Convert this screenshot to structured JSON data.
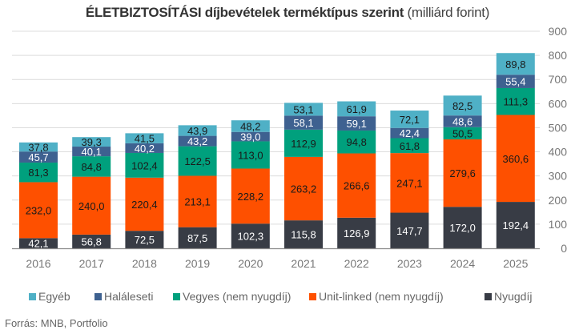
{
  "chart_data": {
    "type": "bar",
    "stacked": true,
    "title_bold": "ÉLETBIZTOSÍTÁSI díjbevételek terméktípus szerint",
    "title_light": "(milliárd forint)",
    "categories": [
      "2016",
      "2017",
      "2018",
      "2019",
      "2020",
      "2021",
      "2022",
      "2023",
      "2024",
      "2025"
    ],
    "series": [
      {
        "name": "Nyugdíj",
        "color": "#383c45",
        "label_color": "#ffffff",
        "values": [
          42.1,
          56.8,
          72.5,
          87.5,
          102.3,
          115.8,
          126.9,
          147.7,
          172.0,
          192.4
        ]
      },
      {
        "name": "Unit-linked (nem nyugdíj)",
        "color": "#fe5000",
        "label_color": "#1a1a1a",
        "values": [
          232.0,
          240.0,
          220.4,
          213.1,
          228.2,
          263.2,
          266.6,
          247.1,
          279.6,
          360.6
        ]
      },
      {
        "name": "Vegyes (nem nyugdíj)",
        "color": "#00a07d",
        "label_color": "#1a1a1a",
        "values": [
          81.3,
          84.8,
          102.4,
          122.5,
          113.0,
          112.9,
          94.8,
          61.8,
          50.5,
          111.3
        ]
      },
      {
        "name": "Haláleseti",
        "color": "#3e6190",
        "label_color": "#ffffff",
        "values": [
          45.7,
          40.1,
          40.2,
          43.2,
          39.0,
          58.1,
          59.1,
          42.4,
          48.6,
          55.4
        ]
      },
      {
        "name": "Egyéb",
        "color": "#4fb0c6",
        "label_color": "#1a1a1a",
        "values": [
          37.8,
          39.3,
          41.5,
          43.9,
          48.2,
          53.1,
          61.9,
          72.1,
          82.5,
          89.8
        ]
      }
    ],
    "legend_order": [
      "Egyéb",
      "Haláleseti",
      "Vegyes (nem nyugdíj)",
      "Unit-linked (nem nyugdíj)",
      "Nyugdíj"
    ],
    "xlabel": "",
    "ylabel": "",
    "ylim": [
      0,
      900
    ],
    "yticks": [
      0,
      100,
      200,
      300,
      400,
      500,
      600,
      700,
      800,
      900
    ],
    "y_axis_side": "right",
    "grid": true,
    "legend_position": "bottom",
    "decimal_separator": ","
  },
  "source": "Forrás: MNB, Portfolio"
}
